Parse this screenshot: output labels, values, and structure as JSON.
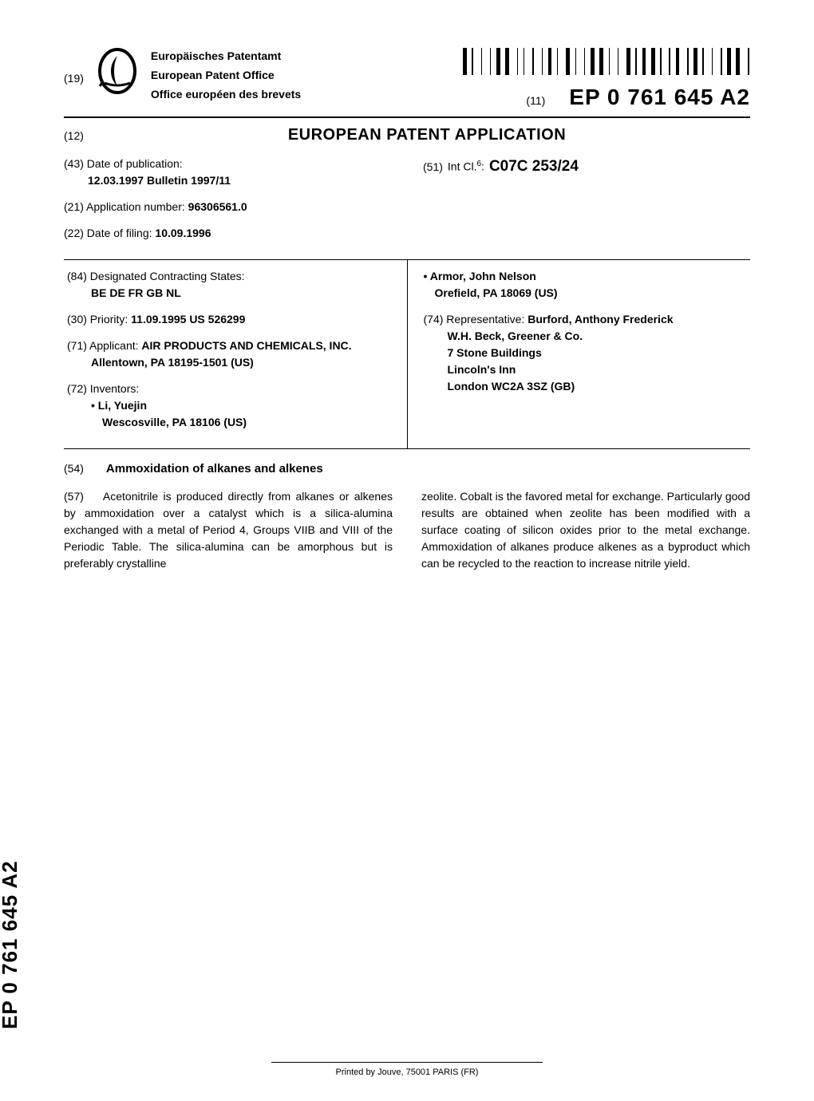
{
  "header": {
    "office_code": "(19)",
    "office_names": [
      "Europäisches Patentamt",
      "European Patent Office",
      "Office européen des brevets"
    ],
    "pub_label": "(11)",
    "pub_number": "EP 0 761 645 A2"
  },
  "doc_type": {
    "code": "(12)",
    "title": "EUROPEAN PATENT APPLICATION"
  },
  "biblio": {
    "date_pub": {
      "inid": "(43)",
      "label": "Date of publication:",
      "value": "12.03.1997  Bulletin 1997/11"
    },
    "app_number": {
      "inid": "(21)",
      "label": "Application number:",
      "value": "96306561.0"
    },
    "filing_date": {
      "inid": "(22)",
      "label": "Date of filing:",
      "value": "10.09.1996"
    },
    "int_cl": {
      "inid": "(51)",
      "prefix": "Int Cl.",
      "edition": "6",
      "value": "C07C 253/24"
    },
    "designated": {
      "inid": "(84)",
      "label": "Designated Contracting States:",
      "value": "BE DE FR GB NL"
    },
    "priority": {
      "inid": "(30)",
      "label": "Priority:",
      "value": "11.09.1995  US 526299"
    },
    "applicant": {
      "inid": "(71)",
      "label": "Applicant:",
      "name": "AIR PRODUCTS AND CHEMICALS, INC.",
      "address": "Allentown, PA 18195-1501 (US)"
    },
    "inventors": {
      "inid": "(72)",
      "label": "Inventors:",
      "list": [
        {
          "name": "Li, Yuejin",
          "address": "Wescosville, PA 18106 (US)"
        },
        {
          "name": "Armor, John Nelson",
          "address": "Orefield, PA 18069 (US)"
        }
      ]
    },
    "representative": {
      "inid": "(74)",
      "label": "Representative:",
      "name": "Burford, Anthony Frederick",
      "firm": "W.H. Beck, Greener & Co.",
      "addr1": "7 Stone Buildings",
      "addr2": "Lincoln's Inn",
      "addr3": "London WC2A 3SZ (GB)"
    }
  },
  "title": {
    "inid": "(54)",
    "text": "Ammoxidation of alkanes and alkenes"
  },
  "abstract": {
    "inid": "(57)",
    "col1": "Acetonitrile is produced directly from alkanes or alkenes by ammoxidation over a catalyst which is a silica-alumina exchanged with a metal of Period 4, Groups VIIB and VIII of the Periodic Table. The silica-alumina can be amorphous but is preferably crystalline",
    "col2": "zeolite. Cobalt is the favored metal for exchange. Particularly good results are obtained when zeolite has been modified with a surface coating of silicon oxides prior to the metal exchange. Ammoxidation of alkanes produce alkenes as a byproduct which can be recycled to the reaction to increase nitrile yield."
  },
  "side_pub_number": "EP 0 761 645 A2",
  "footer": "Printed by Jouve, 75001 PARIS (FR)",
  "barcode_widths": [
    3,
    1,
    1,
    3,
    1,
    3,
    1,
    1,
    3,
    1,
    3,
    3,
    1,
    1,
    1,
    3,
    1,
    3,
    1,
    1,
    3,
    1,
    1,
    3,
    3,
    1,
    1,
    3,
    1,
    1,
    3,
    1,
    3,
    1,
    1,
    3,
    1,
    3,
    3,
    1,
    1,
    1,
    3,
    1,
    3,
    1,
    1,
    3,
    1,
    1,
    3,
    3,
    1,
    1,
    3,
    1,
    1,
    3,
    1,
    3,
    1,
    1,
    3,
    1,
    3,
    3,
    1
  ],
  "colors": {
    "text": "#000000",
    "bg": "#ffffff"
  }
}
